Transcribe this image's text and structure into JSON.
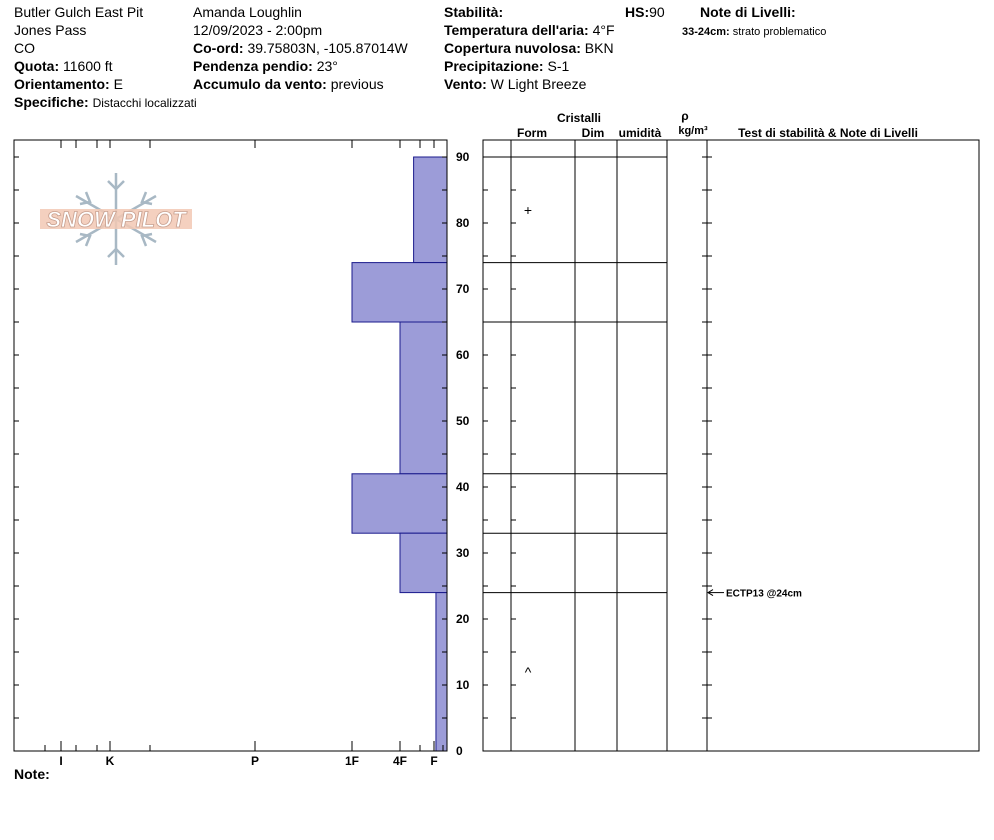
{
  "header": {
    "location": "Butler Gulch East Pit",
    "area": "Jones Pass",
    "state": "CO",
    "elevation_label": "Quota:",
    "elevation": "11600 ft",
    "aspect_label": "Orientamento:",
    "aspect": "E",
    "specifics_label": "Specifiche:",
    "specifics": "Distacchi localizzati",
    "observer": "Amanda Loughlin",
    "datetime": "12/09/2023 - 2:00pm",
    "coord_label": "Co-ord:",
    "coord": "39.75803N, -105.87014W",
    "slope_label": "Pendenza pendio:",
    "slope": "23°",
    "wind_loading_label": "Accumulo da vento:",
    "wind_loading": "previous",
    "stability_label": "Stabilità:",
    "stability": "",
    "hs_label": "HS:",
    "hs": "90",
    "air_temp_label": "Temperatura dell'aria:",
    "air_temp": "4°F",
    "cloud_label": "Copertura nuvolosa:",
    "cloud": "BKN",
    "precip_label": "Precipitazione:",
    "precip": "S-1",
    "wind_label": "Vento:",
    "wind": "W Light Breeze",
    "layer_notes_label": "Note di Livelli:",
    "layer_note_depth": "33-24cm:",
    "layer_note_text": "strato problematico"
  },
  "logo_text": "SNOW PILOT",
  "notes_label": "Note:",
  "table_headers": {
    "crystals": "Cristalli",
    "form": "Form",
    "dim": "Dim",
    "moisture": "umidità",
    "rho": "ρ",
    "density_unit": "kg/m³",
    "tests": "Test di stabilità & Note di Livelli"
  },
  "colors": {
    "hardness_fill": "#9c9cd8",
    "hardness_stroke": "#1a1a8c"
  },
  "chart_data": {
    "type": "bar",
    "title": "",
    "orientation": "horizontal",
    "xlabel": "",
    "ylabel": "",
    "ylim": [
      0,
      90
    ],
    "y_ticks": [
      0,
      10,
      20,
      30,
      40,
      50,
      60,
      70,
      80,
      90
    ],
    "x_ticks": [
      "I",
      "K",
      "P",
      "1F",
      "4F",
      "F"
    ],
    "hardness_scale": {
      "F": 1,
      "4F": 2,
      "1F": 3,
      "P": 4,
      "K": 5,
      "I": 6
    },
    "layers": [
      {
        "top": 90,
        "bottom": 74,
        "hardness": "F",
        "value": 1.3
      },
      {
        "top": 74,
        "bottom": 65,
        "hardness": "1F",
        "value": 3.0
      },
      {
        "top": 65,
        "bottom": 42,
        "hardness": "4F",
        "value": 1.5
      },
      {
        "top": 42,
        "bottom": 33,
        "hardness": "1F",
        "value": 3.0
      },
      {
        "top": 33,
        "bottom": 24,
        "hardness": "4F",
        "value": 1.5
      },
      {
        "top": 24,
        "bottom": 0,
        "hardness": "F",
        "value": 0.85
      }
    ],
    "grain_forms": [
      {
        "depth": 82,
        "symbol": "+"
      },
      {
        "depth": 12,
        "symbol": "^"
      }
    ],
    "stability_tests": [
      {
        "depth": 24,
        "label": "ECTP13 @24cm"
      }
    ]
  }
}
